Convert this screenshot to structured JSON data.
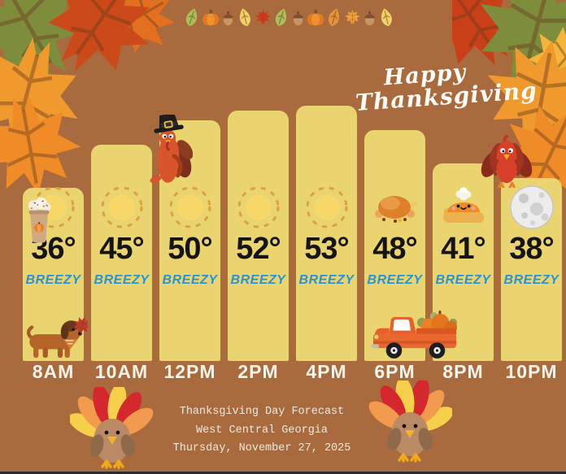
{
  "header": {
    "greeting_line1": "Happy",
    "greeting_line2": "Thanksgiving"
  },
  "top_banner_icons": [
    "green-leaf",
    "pumpkin",
    "acorn",
    "yellow-leaf",
    "red-maple-leaf",
    "green-leaf",
    "acorn",
    "pumpkin",
    "orange-leaf",
    "orange-maple-leaf",
    "acorn",
    "yellow-leaf"
  ],
  "chart_data": {
    "type": "bar",
    "title": "Thanksgiving Day Forecast",
    "categories": [
      "8AM",
      "10AM",
      "12PM",
      "2PM",
      "4PM",
      "6PM",
      "8PM",
      "10PM"
    ],
    "values": [
      36,
      45,
      50,
      52,
      53,
      48,
      41,
      38
    ],
    "unit": "°",
    "condition": "BREEZY",
    "icons": [
      "sun",
      "sun",
      "sun",
      "sun",
      "sun",
      "roast-turkey",
      "pumpkin-pie",
      "full-moon"
    ],
    "legend": "none",
    "grid": "off",
    "ylim": [
      0,
      75
    ]
  },
  "footer": {
    "line1": "Thanksgiving Day Forecast",
    "line2": "West Central Georgia",
    "line3": "Thursday, November 27, 2025"
  },
  "decorations": [
    "autumn-leaves-top-left",
    "autumn-leaves-top-right",
    "pumpkin-spice-latte",
    "pilgrim-turkey",
    "dachshund-dog",
    "pumpkin-truck",
    "perched-turkey",
    "bottom-left-turkey",
    "bottom-right-turkey"
  ],
  "colors": {
    "background": "#a96a3e",
    "bar_fill": "#e9d46f",
    "condition_blue": "#2b93d1",
    "temperature_text": "#161412",
    "label_white": "#f8f4ea",
    "bottom_strip": "#262b33"
  }
}
